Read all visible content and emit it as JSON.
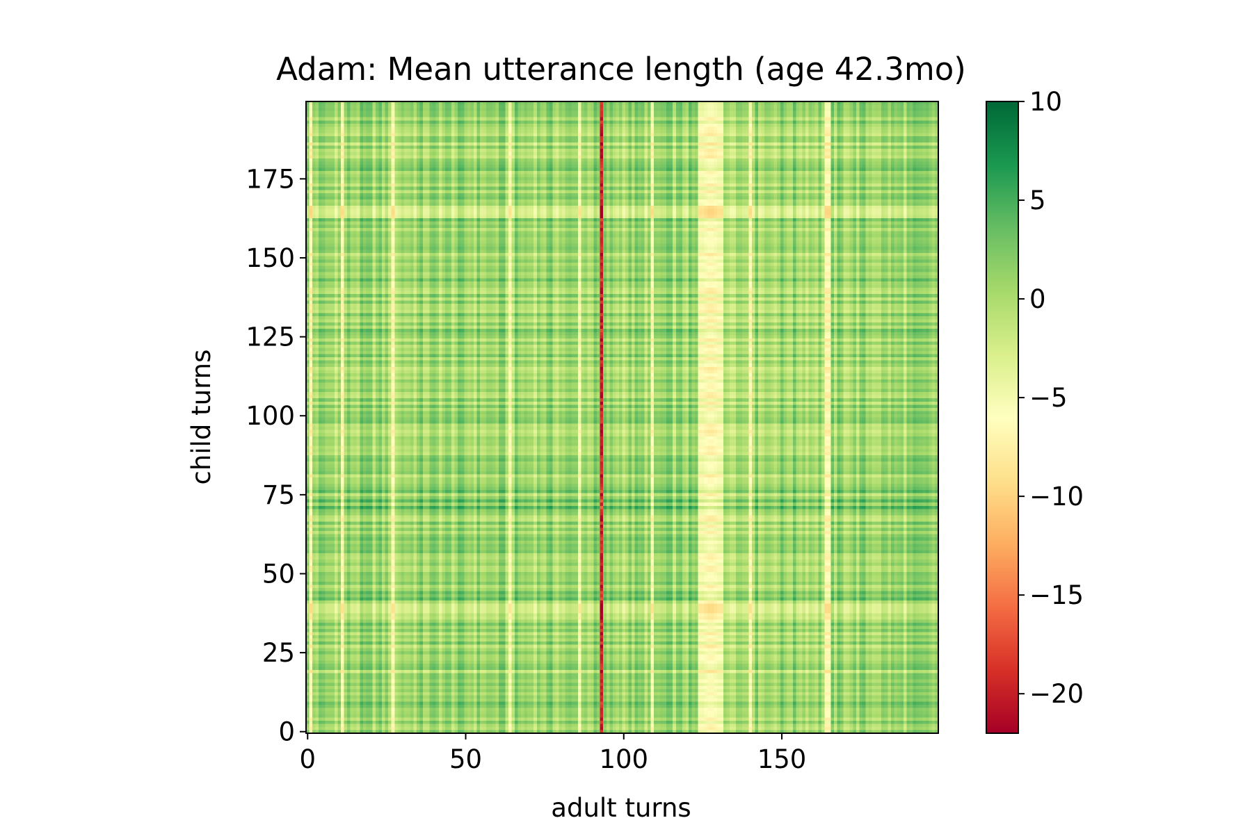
{
  "chart_data": {
    "type": "heatmap",
    "title": "Adam: Mean utterance length (age 42.3mo)",
    "xlabel": "adult turns",
    "ylabel": "child turns",
    "x_range": [
      0,
      199
    ],
    "y_range": [
      0,
      199
    ],
    "grid_size": [
      200,
      200
    ],
    "xticks": [
      0,
      50,
      100,
      150
    ],
    "yticks": [
      0,
      25,
      50,
      75,
      100,
      125,
      150,
      175
    ],
    "xtick_labels": [
      "0",
      "50",
      "100",
      "150"
    ],
    "ytick_labels": [
      "0",
      "25",
      "50",
      "75",
      "100",
      "125",
      "150",
      "175"
    ],
    "colormap": "RdYlGn",
    "colormap_stops": [
      "#a50026",
      "#d73027",
      "#f46d43",
      "#fdae61",
      "#fee08b",
      "#ffffbf",
      "#d9ef8b",
      "#a6d96a",
      "#66bd63",
      "#1a9850",
      "#006837"
    ],
    "vmin": -22,
    "vmax": 10,
    "colorbar_ticks": [
      10,
      5,
      0,
      -5,
      -10,
      -15,
      -20
    ],
    "colorbar_tick_labels": [
      "10",
      "5",
      "0",
      "−5",
      "−10",
      "−15",
      "−20"
    ],
    "model": "value(x, y) = column_effect(x) + row_effect(y)",
    "column_effect_baseline": 0.5,
    "column_effect_anomalies": [
      {
        "x": 1,
        "value": -6.5
      },
      {
        "x": 11,
        "value": -6
      },
      {
        "x": 27,
        "value": -6
      },
      {
        "x": 64,
        "value": -5.5
      },
      {
        "x": 86,
        "value": -5.5
      },
      {
        "x": 93,
        "value": -20
      },
      {
        "x": 109,
        "value": -6
      },
      {
        "x": 124,
        "value": -5.5
      },
      {
        "x": 125,
        "value": -5.5
      },
      {
        "x": 126,
        "value": -6
      },
      {
        "x": 127,
        "value": -6.5
      },
      {
        "x": 128,
        "value": -6.5
      },
      {
        "x": 129,
        "value": -6
      },
      {
        "x": 130,
        "value": -5.5
      },
      {
        "x": 131,
        "value": -5.5
      },
      {
        "x": 140,
        "value": -6
      },
      {
        "x": 164,
        "value": -6.5
      },
      {
        "x": 165,
        "value": -6.5
      }
    ],
    "row_effect_baseline": 0,
    "row_effect_anomalies": [
      {
        "y": 9,
        "value": 2.5
      },
      {
        "y": 19,
        "value": -2.5
      },
      {
        "y": 28,
        "value": 2
      },
      {
        "y": 38,
        "value": -3
      },
      {
        "y": 39,
        "value": -3
      },
      {
        "y": 40,
        "value": -3
      },
      {
        "y": 42,
        "value": 3
      },
      {
        "y": 44,
        "value": 2.5
      },
      {
        "y": 61,
        "value": 2
      },
      {
        "y": 71,
        "value": 4
      },
      {
        "y": 73,
        "value": 3.5
      },
      {
        "y": 76,
        "value": 3
      },
      {
        "y": 127,
        "value": 2.5
      },
      {
        "y": 143,
        "value": 2.5
      },
      {
        "y": 162,
        "value": 2.5
      },
      {
        "y": 163,
        "value": -3
      },
      {
        "y": 164,
        "value": -3.5
      },
      {
        "y": 165,
        "value": -3.5
      },
      {
        "y": 166,
        "value": -3
      },
      {
        "y": 178,
        "value": 2.5
      },
      {
        "y": 186,
        "value": -2.5
      },
      {
        "y": 193,
        "value": 2
      }
    ]
  }
}
